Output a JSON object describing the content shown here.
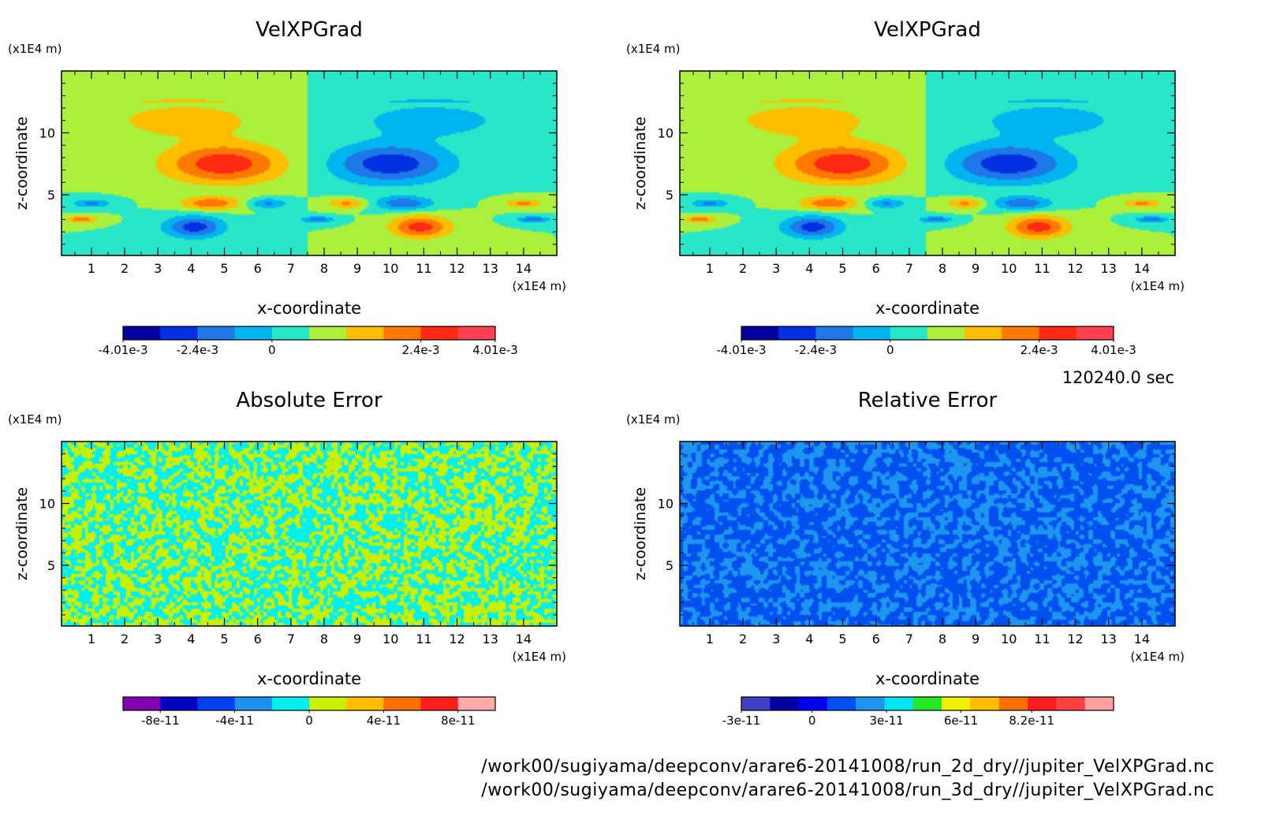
{
  "time_label": "120240.0 sec",
  "files": [
    "/work00/sugiyama/deepconv/arare6-20141008/run_2d_dry//jupiter_VelXPGrad.nc",
    "/work00/sugiyama/deepconv/arare6-20141008/run_3d_dry//jupiter_VelXPGrad.nc"
  ],
  "chart_data": [
    {
      "type": "heatmap",
      "title": "VelXPGrad",
      "xlabel": "x-coordinate",
      "ylabel": "z-coordinate",
      "xunit": "(x1E4 m)",
      "yunit": "(x1E4 m)",
      "xlim": [
        0.1,
        15
      ],
      "ylim": [
        0.1,
        15
      ],
      "xticks": [
        1,
        2,
        3,
        4,
        5,
        6,
        7,
        8,
        9,
        10,
        11,
        12,
        13,
        14
      ],
      "yticks": [
        5,
        10
      ],
      "pattern": "field",
      "colorbar": {
        "colors": [
          "#0000a0",
          "#0030e0",
          "#1e78e8",
          "#00b4f0",
          "#28e6c8",
          "#aaf03c",
          "#ffbe00",
          "#ff7800",
          "#ff2a14",
          "#ff4050"
        ],
        "labels": [
          "-4.01e-3",
          "-2.4e-3",
          "0",
          "2.4e-3",
          "4.01e-3"
        ]
      }
    },
    {
      "type": "heatmap",
      "title": "VelXPGrad",
      "xlabel": "x-coordinate",
      "ylabel": "z-coordinate",
      "xunit": "(x1E4 m)",
      "yunit": "(x1E4 m)",
      "xlim": [
        0.1,
        15
      ],
      "ylim": [
        0.1,
        15
      ],
      "xticks": [
        1,
        2,
        3,
        4,
        5,
        6,
        7,
        8,
        9,
        10,
        11,
        12,
        13,
        14
      ],
      "yticks": [
        5,
        10
      ],
      "pattern": "field",
      "colorbar": {
        "colors": [
          "#0000a0",
          "#0030e0",
          "#1e78e8",
          "#00b4f0",
          "#28e6c8",
          "#aaf03c",
          "#ffbe00",
          "#ff7800",
          "#ff2a14",
          "#ff4050"
        ],
        "labels": [
          "-4.01e-3",
          "-2.4e-3",
          "0",
          "2.4e-3",
          "4.01e-3"
        ]
      }
    },
    {
      "type": "heatmap",
      "title": "Absolute Error",
      "xlabel": "x-coordinate",
      "ylabel": "z-coordinate",
      "xunit": "(x1E4 m)",
      "yunit": "(x1E4 m)",
      "xlim": [
        0.1,
        15
      ],
      "ylim": [
        0.1,
        15
      ],
      "xticks": [
        1,
        2,
        3,
        4,
        5,
        6,
        7,
        8,
        9,
        10,
        11,
        12,
        13,
        14
      ],
      "yticks": [
        5,
        10
      ],
      "pattern": "noise_abs",
      "colorbar": {
        "colors": [
          "#8000b0",
          "#0000c0",
          "#0040f0",
          "#1e90f0",
          "#00f0f0",
          "#c8f000",
          "#ffbe00",
          "#ff6e00",
          "#ff1e1e",
          "#ffaaaa"
        ],
        "labels": [
          "-8e-11",
          "-4e-11",
          "0",
          "4e-11",
          "8e-11"
        ]
      }
    },
    {
      "type": "heatmap",
      "title": "Relative Error",
      "xlabel": "x-coordinate",
      "ylabel": "z-coordinate",
      "xunit": "(x1E4 m)",
      "yunit": "(x1E4 m)",
      "xlim": [
        0.1,
        15
      ],
      "ylim": [
        0.1,
        15
      ],
      "xticks": [
        1,
        2,
        3,
        4,
        5,
        6,
        7,
        8,
        9,
        10,
        11,
        12,
        13,
        14
      ],
      "yticks": [
        5,
        10
      ],
      "pattern": "noise_rel",
      "colorbar": {
        "colors": [
          "#4040c0",
          "#0000a0",
          "#0000f0",
          "#0050f0",
          "#1e96f0",
          "#00e6f0",
          "#28e628",
          "#f0f000",
          "#ffbe00",
          "#ff6e00",
          "#ff1e1e",
          "#ff4040",
          "#ffa0a0"
        ],
        "labels": [
          "-3e-11",
          "0",
          "3e-11",
          "6e-11",
          "8.2e-11"
        ]
      }
    }
  ]
}
